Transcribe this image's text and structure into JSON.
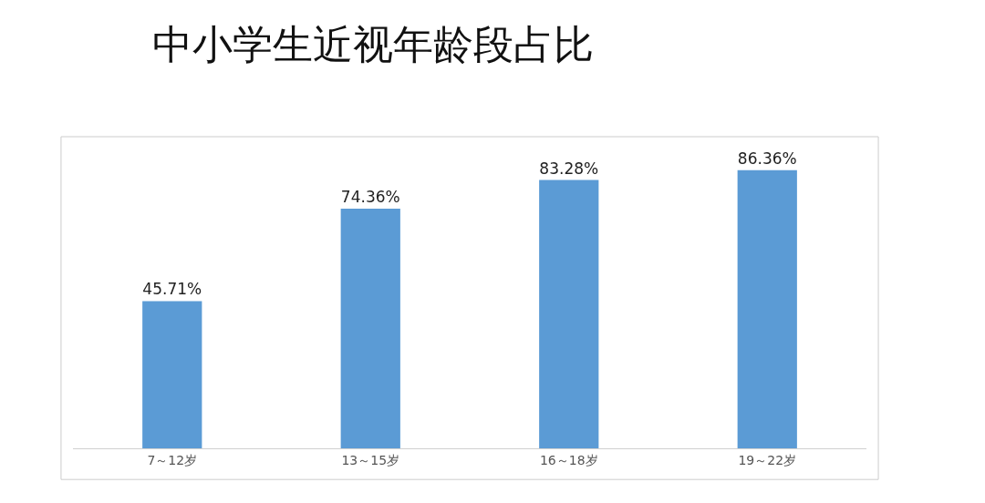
{
  "chart_data": {
    "type": "bar",
    "title": "中小学生近视年龄段占比",
    "categories": [
      "7～12岁",
      "13～15岁",
      "16～18岁",
      "19～22岁"
    ],
    "values": [
      45.71,
      74.36,
      83.28,
      86.36
    ],
    "value_labels": [
      "45.71%",
      "74.36%",
      "83.28%",
      "86.36%"
    ],
    "color": "#5b9bd5"
  }
}
